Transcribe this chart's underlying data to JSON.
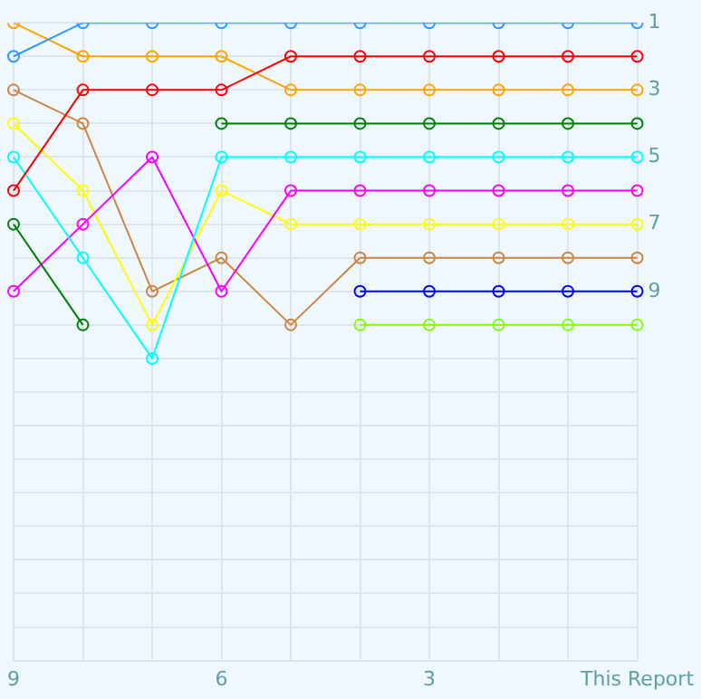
{
  "chart_data": {
    "type": "line",
    "categories": [
      "9",
      null,
      null,
      "6",
      null,
      null,
      "3",
      null,
      null,
      "This Report"
    ],
    "series": [
      {
        "color": "#3399ff",
        "values": [
          2,
          1,
          1,
          1,
          1,
          1,
          1,
          1,
          1,
          1
        ]
      },
      {
        "color": "#ff0000",
        "values": [
          6,
          3,
          3,
          3,
          2,
          2,
          2,
          2,
          2,
          2
        ]
      },
      {
        "color": "#ffa500",
        "values": [
          1,
          2,
          2,
          2,
          3,
          3,
          3,
          3,
          3,
          3
        ]
      },
      {
        "color": "#008000",
        "values": [
          7,
          10,
          null,
          4,
          4,
          4,
          4,
          4,
          4,
          4
        ]
      },
      {
        "color": "#00ffff",
        "values": [
          5,
          8,
          11,
          5,
          5,
          5,
          5,
          5,
          5,
          5
        ]
      },
      {
        "color": "#ff00ff",
        "values": [
          9,
          7,
          5,
          9,
          6,
          6,
          6,
          6,
          6,
          6
        ]
      },
      {
        "color": "#ffff00",
        "values": [
          4,
          6,
          10,
          6,
          7,
          7,
          7,
          7,
          7,
          7
        ]
      },
      {
        "color": "#cd853f",
        "values": [
          3,
          4,
          9,
          8,
          10,
          8,
          8,
          8,
          8,
          8
        ]
      },
      {
        "color": "#0000ff",
        "values": [
          null,
          null,
          null,
          null,
          null,
          9,
          9,
          9,
          9,
          9
        ]
      },
      {
        "color": "#7fff00",
        "values": [
          null,
          null,
          null,
          null,
          null,
          10,
          10,
          10,
          10,
          10
        ]
      }
    ],
    "ylim": [
      20,
      1
    ],
    "yticks": [
      1,
      {
        "value": 2,
        "label": null
      },
      3,
      {
        "value": 4,
        "label": null
      },
      5,
      {
        "value": 6,
        "label": null
      },
      7,
      {
        "value": 8,
        "label": null
      },
      9,
      {
        "value": 10,
        "label": null
      },
      {
        "value": 11,
        "label": null
      },
      {
        "value": 12,
        "label": null
      },
      {
        "value": 13,
        "label": null
      },
      {
        "value": 14,
        "label": null
      },
      {
        "value": 15,
        "label": null
      },
      {
        "value": 16,
        "label": null
      },
      {
        "value": 17,
        "label": null
      },
      {
        "value": 18,
        "label": null
      },
      {
        "value": 19,
        "label": null
      },
      {
        "value": 20,
        "label": null
      }
    ],
    "grid": true,
    "legend": false,
    "marker": "circle",
    "line_style": "solid"
  }
}
